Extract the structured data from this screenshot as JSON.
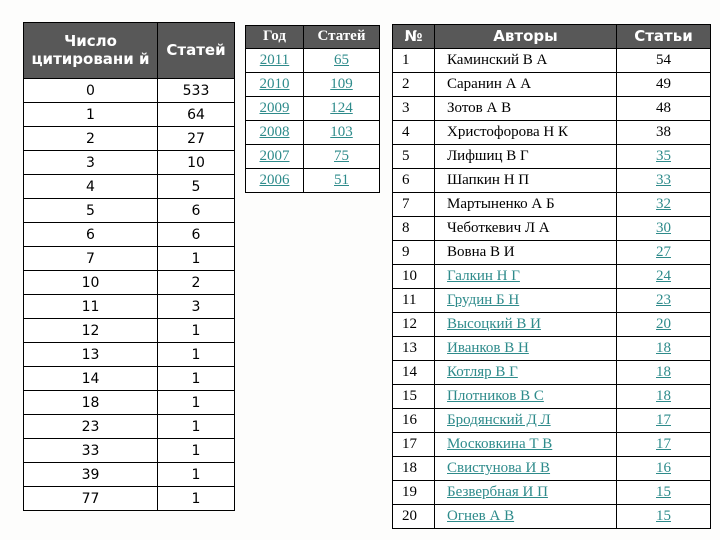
{
  "colors": {
    "header_bg": "#585858",
    "header_text": "#ffffff",
    "link": "#2e8b8b",
    "body_text": "#000000",
    "border": "#000000",
    "page_bg": "#fdfdfc"
  },
  "citations_table": {
    "headers": [
      "Число цитировани й",
      "Статей"
    ],
    "rows": [
      {
        "citations": "0",
        "articles": "533"
      },
      {
        "citations": "1",
        "articles": "64"
      },
      {
        "citations": "2",
        "articles": "27"
      },
      {
        "citations": "3",
        "articles": "10"
      },
      {
        "citations": "4",
        "articles": "5"
      },
      {
        "citations": "5",
        "articles": "6"
      },
      {
        "citations": "6",
        "articles": "6"
      },
      {
        "citations": "7",
        "articles": "1"
      },
      {
        "citations": "10",
        "articles": "2"
      },
      {
        "citations": "11",
        "articles": "3"
      },
      {
        "citations": "12",
        "articles": "1"
      },
      {
        "citations": "13",
        "articles": "1"
      },
      {
        "citations": "14",
        "articles": "1"
      },
      {
        "citations": "18",
        "articles": "1"
      },
      {
        "citations": "23",
        "articles": "1"
      },
      {
        "citations": "33",
        "articles": "1"
      },
      {
        "citations": "39",
        "articles": "1"
      },
      {
        "citations": "77",
        "articles": "1"
      }
    ]
  },
  "years_table": {
    "headers": [
      "Год",
      "Статей"
    ],
    "rows": [
      {
        "year": "2011",
        "articles": "65"
      },
      {
        "year": "2010",
        "articles": "109"
      },
      {
        "year": "2009",
        "articles": "124"
      },
      {
        "year": "2008",
        "articles": "103"
      },
      {
        "year": "2007",
        "articles": "75"
      },
      {
        "year": "2006",
        "articles": "51"
      }
    ]
  },
  "authors_table": {
    "headers": [
      "№",
      "Авторы",
      "Статьи"
    ],
    "rows": [
      {
        "num": "1",
        "author": "Каминский В А",
        "articles": "54",
        "author_link": false,
        "articles_link": false
      },
      {
        "num": "2",
        "author": "Саранин А А",
        "articles": "49",
        "author_link": false,
        "articles_link": false
      },
      {
        "num": "3",
        "author": "Зотов А В",
        "articles": "48",
        "author_link": false,
        "articles_link": false
      },
      {
        "num": "4",
        "author": "Христофорова Н К",
        "articles": "38",
        "author_link": false,
        "articles_link": false
      },
      {
        "num": "5",
        "author": "Лифшиц В Г",
        "articles": "35",
        "author_link": false,
        "articles_link": true
      },
      {
        "num": "6",
        "author": "Шапкин Н П",
        "articles": "33",
        "author_link": false,
        "articles_link": true
      },
      {
        "num": "7",
        "author": "Мартыненко А Б",
        "articles": "32",
        "author_link": false,
        "articles_link": true
      },
      {
        "num": "8",
        "author": "Чеботкевич Л А",
        "articles": "30",
        "author_link": false,
        "articles_link": true
      },
      {
        "num": "9",
        "author": "Вовна В И",
        "articles": "27",
        "author_link": false,
        "articles_link": true
      },
      {
        "num": "10",
        "author": "Галкин Н Г",
        "articles": "24",
        "author_link": true,
        "articles_link": true
      },
      {
        "num": "11",
        "author": "Грудин Б Н",
        "articles": "23",
        "author_link": true,
        "articles_link": true
      },
      {
        "num": "12",
        "author": "Высоцкий В И",
        "articles": "20",
        "author_link": true,
        "articles_link": true
      },
      {
        "num": "13",
        "author": "Иванков В Н",
        "articles": "18",
        "author_link": true,
        "articles_link": true
      },
      {
        "num": "14",
        "author": "Котляр В Г",
        "articles": "18",
        "author_link": true,
        "articles_link": true
      },
      {
        "num": "15",
        "author": "Плотников В С",
        "articles": "18",
        "author_link": true,
        "articles_link": true
      },
      {
        "num": "16",
        "author": "Бродянский Д Л",
        "articles": "17",
        "author_link": true,
        "articles_link": true
      },
      {
        "num": "17",
        "author": "Московкина Т В",
        "articles": "17",
        "author_link": true,
        "articles_link": true
      },
      {
        "num": "18",
        "author": "Свистунова И В",
        "articles": "16",
        "author_link": true,
        "articles_link": true
      },
      {
        "num": "19",
        "author": "Безвербная И П",
        "articles": "15",
        "author_link": true,
        "articles_link": true
      },
      {
        "num": "20",
        "author": "Огнев А В",
        "articles": "15",
        "author_link": true,
        "articles_link": true
      }
    ]
  }
}
